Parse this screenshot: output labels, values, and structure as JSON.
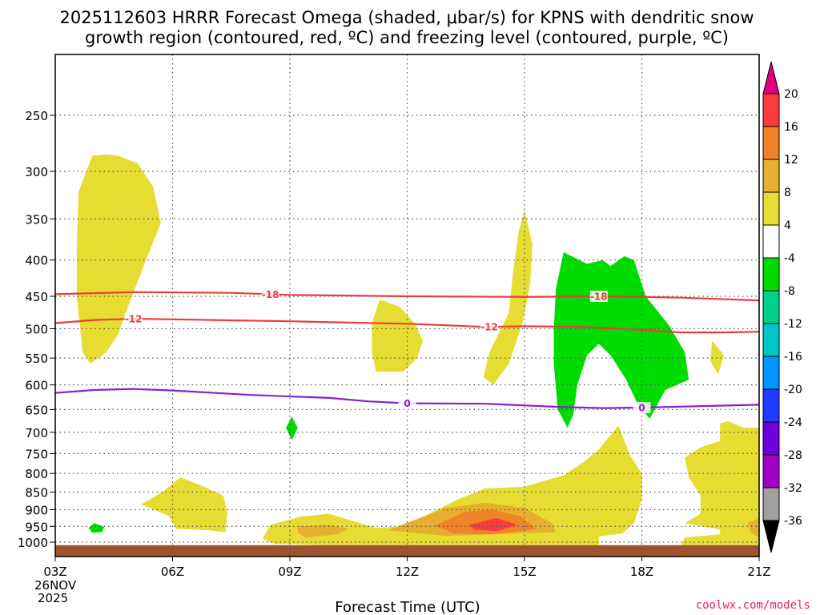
{
  "title_line1": "2025112603 HRRR Forecast Omega (shaded, μbar/s) for KPNS with dendritic snow",
  "title_line2": "growth region (contoured, red, ºC) and freezing level (contoured, purple, ºC)",
  "xlabel": "Forecast Time (UTC)",
  "credit": "coolwx.com/models",
  "date_label": [
    "26NOV",
    "2025"
  ],
  "chart_data": {
    "type": "contour",
    "title": "2025112603 HRRR Forecast Omega (shaded, μbar/s) for KPNS with dendritic snow growth region (contoured, red, ºC) and freezing level (contoured, purple, ºC)",
    "xlabel": "Forecast Time (UTC)",
    "ylabel": "",
    "x_hours_range": [
      3,
      21
    ],
    "x_ticks": [
      {
        "hour": 3,
        "label": "03Z"
      },
      {
        "hour": 6,
        "label": "06Z"
      },
      {
        "hour": 9,
        "label": "09Z"
      },
      {
        "hour": 12,
        "label": "12Z"
      },
      {
        "hour": 15,
        "label": "15Z"
      },
      {
        "hour": 18,
        "label": "18Z"
      },
      {
        "hour": 21,
        "label": "21Z"
      }
    ],
    "y_axis": "pressure (hPa), log scale, inverted",
    "y_ticks": [
      250,
      300,
      350,
      400,
      450,
      500,
      550,
      600,
      650,
      700,
      750,
      800,
      850,
      900,
      950,
      1000
    ],
    "grid": true,
    "colorbar": {
      "levels": [
        -36,
        -32,
        -28,
        -24,
        -20,
        -16,
        -12,
        -8,
        -4,
        4,
        8,
        12,
        16,
        20
      ],
      "colors": [
        "#000000",
        "#a0a0a0",
        "#a000c8",
        "#6e00dc",
        "#1e3cff",
        "#0096ff",
        "#00c8c8",
        "#00d28c",
        "#00dc00",
        "#ffffff",
        "#e6dc32",
        "#e6af2d",
        "#f08228",
        "#fa3c3c",
        "#dc0082"
      ]
    },
    "contours": [
      {
        "label": "-18",
        "color": "#ef3b3b",
        "points": [
          [
            3,
            447
          ],
          [
            5,
            444
          ],
          [
            7.5,
            445
          ],
          [
            9,
            448
          ],
          [
            12,
            450
          ],
          [
            15,
            451
          ],
          [
            17,
            450
          ],
          [
            19,
            452
          ],
          [
            21,
            456
          ]
        ]
      },
      {
        "label": "-12",
        "color": "#ef3b3b",
        "points": [
          [
            3,
            491
          ],
          [
            4,
            486
          ],
          [
            5,
            484
          ],
          [
            7,
            486
          ],
          [
            9,
            488
          ],
          [
            12,
            492
          ],
          [
            14,
            497
          ],
          [
            15,
            496
          ],
          [
            16.5,
            497
          ],
          [
            18,
            502
          ],
          [
            19,
            506
          ],
          [
            20,
            506
          ],
          [
            21,
            505
          ]
        ]
      },
      {
        "label": "0",
        "color": "#8c1ed2",
        "points": [
          [
            3,
            616
          ],
          [
            4,
            610
          ],
          [
            5,
            608
          ],
          [
            6,
            611
          ],
          [
            8,
            620
          ],
          [
            10,
            626
          ],
          [
            11,
            633
          ],
          [
            12,
            637
          ],
          [
            14,
            638
          ],
          [
            16,
            645
          ],
          [
            17,
            647
          ],
          [
            18,
            646
          ],
          [
            20,
            642
          ],
          [
            21,
            640
          ]
        ]
      }
    ],
    "shaded_regions": [
      {
        "category": "4 to 8",
        "color": "#e6dc32",
        "points": [
          [
            4.6,
            285
          ],
          [
            5.1,
            292
          ],
          [
            5.5,
            315
          ],
          [
            5.7,
            355
          ],
          [
            5.4,
            390
          ],
          [
            5.1,
            430
          ],
          [
            4.8,
            475
          ],
          [
            4.6,
            510
          ],
          [
            4.3,
            540
          ],
          [
            3.9,
            560
          ],
          [
            3.7,
            540
          ],
          [
            3.55,
            450
          ],
          [
            3.55,
            380
          ],
          [
            3.6,
            320
          ],
          [
            3.95,
            285
          ],
          [
            4.3,
            284
          ],
          [
            4.6,
            285
          ]
        ]
      },
      {
        "category": "4 to 8",
        "color": "#e6dc32",
        "points": [
          [
            11.3,
            455
          ],
          [
            11.8,
            465
          ],
          [
            12.2,
            492
          ],
          [
            12.4,
            520
          ],
          [
            12.25,
            550
          ],
          [
            11.9,
            575
          ],
          [
            11.2,
            575
          ],
          [
            11.1,
            540
          ],
          [
            11.1,
            490
          ],
          [
            11.3,
            455
          ]
        ]
      },
      {
        "category": "4 to 8",
        "color": "#e6dc32",
        "points": [
          [
            15.0,
            340
          ],
          [
            15.2,
            380
          ],
          [
            15.15,
            430
          ],
          [
            14.95,
            490
          ],
          [
            14.6,
            560
          ],
          [
            14.2,
            600
          ],
          [
            13.95,
            585
          ],
          [
            14.1,
            540
          ],
          [
            14.6,
            475
          ],
          [
            14.7,
            420
          ],
          [
            14.85,
            365
          ],
          [
            15.0,
            340
          ]
        ]
      },
      {
        "category": "4 to 8",
        "color": "#e6dc32",
        "points": [
          [
            19.8,
            520
          ],
          [
            20.1,
            545
          ],
          [
            19.95,
            580
          ],
          [
            19.75,
            555
          ],
          [
            19.8,
            520
          ]
        ]
      },
      {
        "category": "-8 to -4",
        "color": "#00dc00",
        "points": [
          [
            16.0,
            390
          ],
          [
            16.6,
            405
          ],
          [
            17.0,
            400
          ],
          [
            17.2,
            408
          ],
          [
            17.55,
            395
          ],
          [
            17.8,
            400
          ],
          [
            18.1,
            450
          ],
          [
            18.7,
            495
          ],
          [
            19.1,
            540
          ],
          [
            19.2,
            590
          ],
          [
            18.6,
            610
          ],
          [
            18.2,
            670
          ],
          [
            17.9,
            640
          ],
          [
            17.6,
            590
          ],
          [
            17.2,
            545
          ],
          [
            16.9,
            525
          ],
          [
            16.6,
            545
          ],
          [
            16.35,
            600
          ],
          [
            16.25,
            660
          ],
          [
            16.1,
            690
          ],
          [
            15.85,
            650
          ],
          [
            15.75,
            560
          ],
          [
            15.75,
            500
          ],
          [
            15.8,
            440
          ],
          [
            16.0,
            390
          ]
        ]
      },
      {
        "category": "-8 to -4",
        "color": "#00dc00",
        "points": [
          [
            9.05,
            665
          ],
          [
            9.2,
            690
          ],
          [
            9.05,
            718
          ],
          [
            8.9,
            690
          ],
          [
            9.05,
            665
          ]
        ]
      },
      {
        "category": "-8 to -4",
        "color": "#00dc00",
        "points": [
          [
            4.0,
            940
          ],
          [
            4.25,
            952
          ],
          [
            4.2,
            968
          ],
          [
            3.95,
            970
          ],
          [
            3.85,
            955
          ],
          [
            4.0,
            940
          ]
        ]
      },
      {
        "category": "4 to 8",
        "color": "#e6dc32",
        "points": [
          [
            5.2,
            885
          ],
          [
            5.8,
            845
          ],
          [
            6.2,
            810
          ],
          [
            6.8,
            835
          ],
          [
            7.3,
            860
          ],
          [
            7.4,
            910
          ],
          [
            7.35,
            968
          ],
          [
            6.9,
            962
          ],
          [
            6.1,
            958
          ],
          [
            5.9,
            918
          ],
          [
            5.2,
            885
          ]
        ]
      },
      {
        "category": "4 to 8",
        "color": "#e6dc32",
        "points": [
          [
            8.3,
            990
          ],
          [
            8.5,
            945
          ],
          [
            9.3,
            920
          ],
          [
            10.0,
            912
          ],
          [
            10.8,
            940
          ],
          [
            11.2,
            955
          ],
          [
            12.0,
            950
          ],
          [
            12.6,
            910
          ],
          [
            13.3,
            870
          ],
          [
            14.0,
            840
          ],
          [
            15.0,
            835
          ],
          [
            16.0,
            805
          ],
          [
            16.5,
            772
          ],
          [
            16.9,
            740
          ],
          [
            17.4,
            685
          ],
          [
            17.7,
            755
          ],
          [
            18.0,
            800
          ],
          [
            18.0,
            870
          ],
          [
            17.8,
            940
          ],
          [
            17.5,
            972
          ],
          [
            16.9,
            982
          ],
          [
            16.9,
            1010
          ],
          [
            10.0,
            1010
          ],
          [
            8.6,
            1005
          ],
          [
            8.3,
            990
          ]
        ]
      },
      {
        "category": "4 to 8",
        "color": "#e6dc32",
        "points": [
          [
            19.1,
            940
          ],
          [
            19.5,
            912
          ],
          [
            19.5,
            860
          ],
          [
            19.2,
            810
          ],
          [
            19.1,
            760
          ],
          [
            19.5,
            735
          ],
          [
            20.0,
            720
          ],
          [
            20.0,
            680
          ],
          [
            20.2,
            675
          ],
          [
            20.6,
            690
          ],
          [
            21.0,
            690
          ],
          [
            21.0,
            1010
          ],
          [
            19.0,
            1010
          ],
          [
            19.1,
            985
          ],
          [
            20.0,
            975
          ],
          [
            20.0,
            960
          ],
          [
            19.1,
            940
          ]
        ]
      },
      {
        "category": "8 to 12",
        "color": "#e6af2d",
        "points": [
          [
            9.2,
            950
          ],
          [
            10.0,
            945
          ],
          [
            10.5,
            958
          ],
          [
            10.2,
            975
          ],
          [
            9.4,
            985
          ],
          [
            9.2,
            970
          ],
          [
            9.2,
            950
          ]
        ]
      },
      {
        "category": "8 to 12",
        "color": "#e6af2d",
        "points": [
          [
            11.5,
            962
          ],
          [
            13.0,
            895
          ],
          [
            14.0,
            880
          ],
          [
            15.0,
            895
          ],
          [
            15.7,
            940
          ],
          [
            15.8,
            968
          ],
          [
            13.0,
            980
          ],
          [
            11.5,
            962
          ]
        ]
      },
      {
        "category": "8 to 12",
        "color": "#e6af2d",
        "points": [
          [
            20.7,
            940
          ],
          [
            21.0,
            925
          ],
          [
            21.0,
            985
          ],
          [
            20.8,
            970
          ],
          [
            20.7,
            940
          ]
        ]
      },
      {
        "category": "12 to 16",
        "color": "#f08228",
        "points": [
          [
            12.7,
            948
          ],
          [
            13.5,
            905
          ],
          [
            14.2,
            900
          ],
          [
            14.9,
            920
          ],
          [
            15.3,
            958
          ],
          [
            14.2,
            975
          ],
          [
            13.2,
            972
          ],
          [
            12.7,
            948
          ]
        ]
      },
      {
        "category": "16 to 20",
        "color": "#fa3c3c",
        "points": [
          [
            13.6,
            945
          ],
          [
            14.3,
            925
          ],
          [
            14.8,
            945
          ],
          [
            14.3,
            965
          ],
          [
            13.7,
            960
          ],
          [
            13.6,
            945
          ]
        ]
      }
    ],
    "surface_band": {
      "color": "#a0522d",
      "from_hpa": 1010
    }
  }
}
